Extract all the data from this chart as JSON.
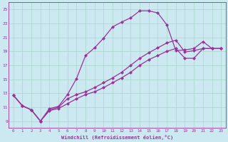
{
  "xlabel": "Windchill (Refroidissement éolien,°C)",
  "bg_color": "#cce8f0",
  "grid_color": "#aad4cc",
  "line_color": "#993399",
  "xlim": [
    -0.5,
    23.5
  ],
  "ylim": [
    8.0,
    26.0
  ],
  "xticks": [
    0,
    1,
    2,
    3,
    4,
    5,
    6,
    7,
    8,
    9,
    10,
    11,
    12,
    13,
    14,
    15,
    16,
    17,
    18,
    19,
    20,
    21,
    22,
    23
  ],
  "yticks": [
    9,
    11,
    13,
    15,
    17,
    19,
    21,
    23,
    25
  ],
  "line1_x": [
    0,
    1,
    2,
    3,
    4,
    5,
    6,
    7,
    8,
    9,
    10,
    11,
    12,
    13,
    14,
    15,
    16,
    17,
    18,
    19,
    20,
    21,
    22,
    23
  ],
  "line1_y": [
    12.7,
    11.2,
    10.6,
    9.0,
    10.8,
    11.1,
    12.8,
    15.1,
    18.4,
    19.5,
    20.9,
    22.5,
    23.2,
    23.8,
    24.8,
    24.8,
    24.5,
    22.8,
    19.1,
    19.2,
    19.4,
    20.4,
    19.4,
    19.4
  ],
  "line2_x": [
    0,
    1,
    2,
    3,
    4,
    5,
    6,
    7,
    8,
    9,
    10,
    11,
    12,
    13,
    14,
    15,
    16,
    17,
    18,
    19,
    20,
    21,
    22,
    23
  ],
  "line2_y": [
    12.7,
    11.2,
    10.6,
    9.0,
    10.6,
    11.0,
    12.2,
    12.8,
    13.2,
    13.8,
    14.5,
    15.2,
    16.0,
    17.0,
    18.0,
    18.8,
    19.5,
    20.2,
    20.6,
    18.9,
    19.1,
    19.4,
    19.4,
    19.4
  ],
  "line3_x": [
    0,
    1,
    2,
    3,
    4,
    5,
    6,
    7,
    8,
    9,
    10,
    11,
    12,
    13,
    14,
    15,
    16,
    17,
    18,
    19,
    20,
    21,
    22,
    23
  ],
  "line3_y": [
    12.7,
    11.2,
    10.6,
    9.0,
    10.5,
    10.8,
    11.5,
    12.2,
    12.8,
    13.2,
    13.8,
    14.5,
    15.2,
    16.0,
    17.0,
    17.8,
    18.4,
    19.0,
    19.4,
    18.0,
    18.0,
    19.4,
    19.4,
    19.4
  ]
}
